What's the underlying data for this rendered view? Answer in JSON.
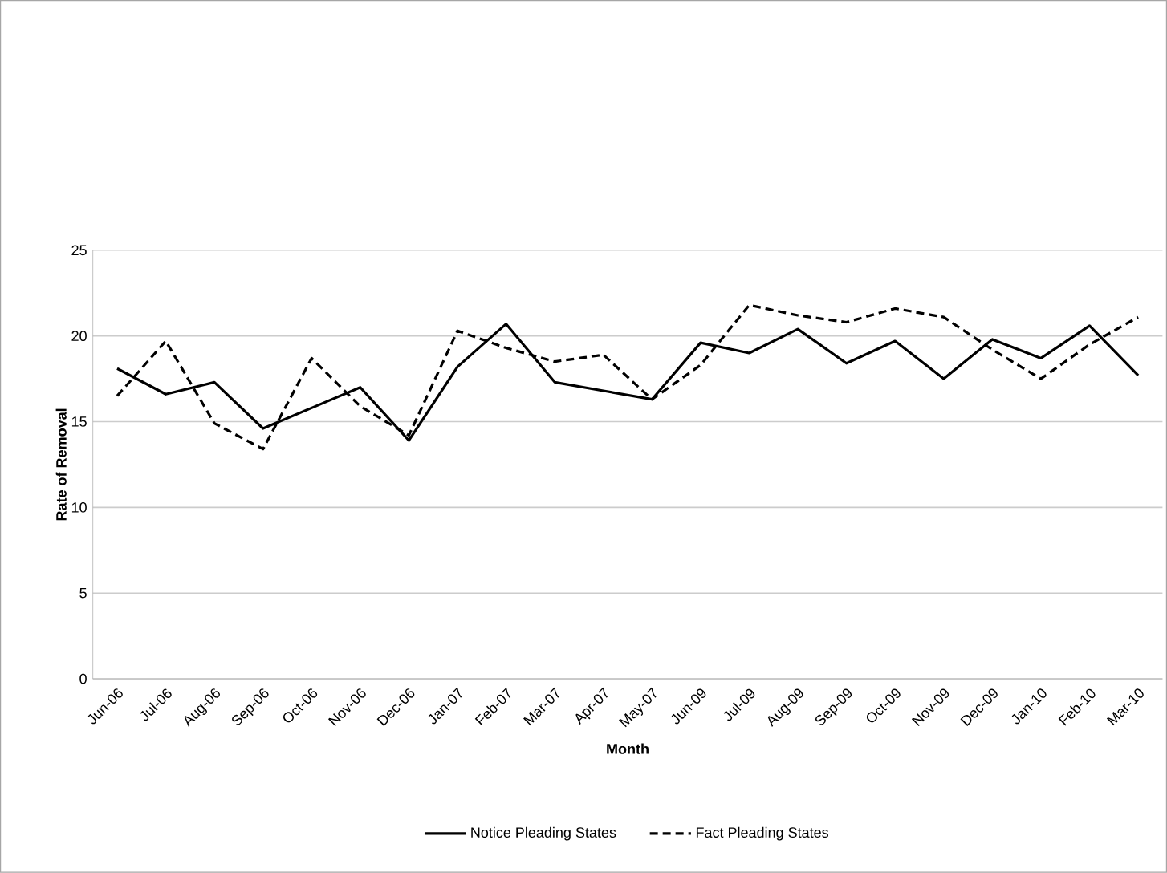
{
  "chart_data": {
    "type": "line",
    "xlabel": "Month",
    "ylabel": "Rate of Removal",
    "categories": [
      "Jun-06",
      "Jul-06",
      "Aug-06",
      "Sep-06",
      "Oct-06",
      "Nov-06",
      "Dec-06",
      "Jan-07",
      "Feb-07",
      "Mar-07",
      "Apr-07",
      "May-07",
      "Jun-09",
      "Jul-09",
      "Aug-09",
      "Sep-09",
      "Oct-09",
      "Nov-09",
      "Dec-09",
      "Jan-10",
      "Feb-10",
      "Mar-10"
    ],
    "series": [
      {
        "name": "Notice Pleading States",
        "color": "#000000",
        "line_style": "solid",
        "values": [
          18.1,
          16.6,
          17.3,
          14.6,
          15.8,
          17.0,
          13.9,
          18.2,
          20.7,
          17.3,
          16.8,
          16.3,
          19.6,
          19.0,
          20.4,
          18.4,
          19.7,
          17.5,
          19.8,
          18.7,
          20.6,
          17.7
        ]
      },
      {
        "name": "Fact Pleading States",
        "color": "#000000",
        "line_style": "dashed",
        "values": [
          16.5,
          19.7,
          14.9,
          13.4,
          18.7,
          15.9,
          14.2,
          20.3,
          19.3,
          18.5,
          18.9,
          16.3,
          18.3,
          21.8,
          21.2,
          20.8,
          21.6,
          21.1,
          19.2,
          17.5,
          19.5,
          21.1
        ]
      }
    ],
    "ylim": [
      0,
      25
    ],
    "yticks": [
      0,
      5,
      10,
      15,
      20,
      25
    ],
    "grid": "y",
    "legend": "bottom",
    "marker": "none"
  }
}
